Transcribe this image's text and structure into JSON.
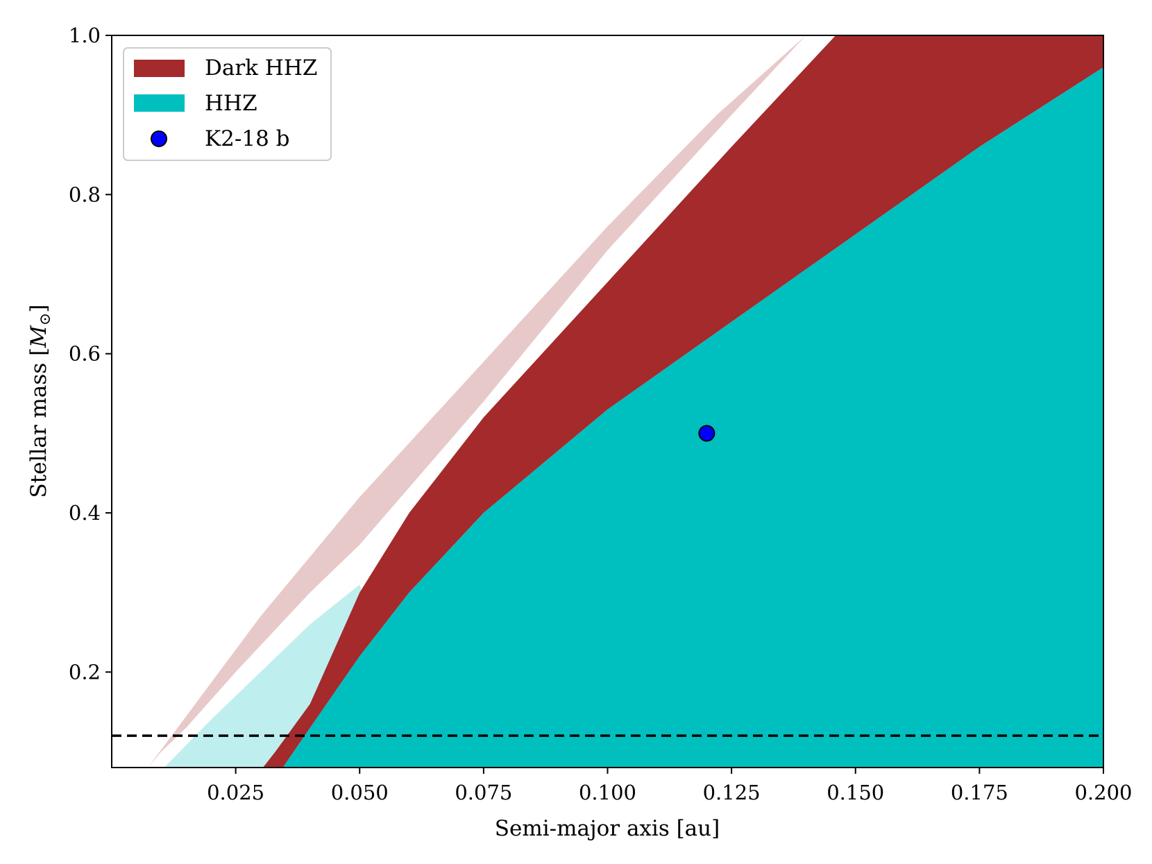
{
  "chart_data": {
    "type": "area",
    "title": "",
    "xlabel": "Semi-major axis [au]",
    "ylabel_text": "Stellar mass [",
    "ylabel_symbol": "M",
    "ylabel_subscript": "⊙",
    "ylabel_close": "]",
    "xlim": [
      0.0,
      0.2
    ],
    "ylim": [
      0.08,
      1.0
    ],
    "x_ticks": [
      0.025,
      0.05,
      0.075,
      0.1,
      0.125,
      0.15,
      0.175,
      0.2
    ],
    "x_tick_labels": [
      "0.025",
      "0.050",
      "0.075",
      "0.100",
      "0.125",
      "0.150",
      "0.175",
      "0.200"
    ],
    "y_ticks": [
      0.2,
      0.4,
      0.6,
      0.8,
      1.0
    ],
    "y_tick_labels": [
      "0.2",
      "0.4",
      "0.6",
      "0.8",
      "1.0"
    ],
    "grid": false,
    "legend_position": "top-left",
    "hline": {
      "y": 0.12,
      "style": "dashed",
      "color": "#000000"
    },
    "colors": {
      "dark_hhz": "#a42a2c",
      "dark_hhz_light": "#e8c9ca",
      "hhz": "#00bfbf",
      "hhz_light": "#bfeeee",
      "planet": "#0000ff"
    },
    "bands": {
      "light_dark_hhz": {
        "lower": [
          [
            0.0073,
            0.08
          ],
          [
            0.01,
            0.1
          ],
          [
            0.015,
            0.13
          ],
          [
            0.025,
            0.2
          ],
          [
            0.04,
            0.3
          ],
          [
            0.05,
            0.36
          ],
          [
            0.075,
            0.54
          ],
          [
            0.1,
            0.73
          ],
          [
            0.125,
            0.9
          ],
          [
            0.14,
            1.0
          ]
        ],
        "upper": [
          [
            0.0073,
            0.08
          ],
          [
            0.03,
            0.27
          ],
          [
            0.05,
            0.42
          ],
          [
            0.075,
            0.59
          ],
          [
            0.1,
            0.76
          ],
          [
            0.122,
            0.9
          ],
          [
            0.14,
            1.0
          ]
        ]
      },
      "light_hhz": {
        "lower": [
          [
            0.0106,
            0.08
          ],
          [
            0.02,
            0.14
          ],
          [
            0.03,
            0.2
          ],
          [
            0.04,
            0.26
          ],
          [
            0.05,
            0.31
          ]
        ],
        "upper": [
          [
            0.05,
            0.31
          ],
          [
            0.055,
            0.31
          ],
          [
            0.06,
            0.31
          ]
        ]
      },
      "dark_hhz": {
        "lower": [
          [
            0.0305,
            0.08
          ],
          [
            0.033,
            0.1
          ],
          [
            0.04,
            0.16
          ],
          [
            0.05,
            0.3
          ],
          [
            0.06,
            0.4
          ],
          [
            0.075,
            0.52
          ],
          [
            0.1,
            0.69
          ],
          [
            0.125,
            0.86
          ],
          [
            0.146,
            1.0
          ]
        ],
        "upper": [
          [
            0.0345,
            0.08
          ],
          [
            0.04,
            0.13
          ],
          [
            0.05,
            0.22
          ],
          [
            0.06,
            0.3
          ],
          [
            0.075,
            0.4
          ],
          [
            0.1,
            0.53
          ],
          [
            0.125,
            0.64
          ],
          [
            0.15,
            0.75
          ],
          [
            0.175,
            0.86
          ],
          [
            0.2,
            0.96
          ]
        ]
      },
      "hhz": {
        "left": [
          [
            0.0345,
            0.08
          ],
          [
            0.04,
            0.13
          ],
          [
            0.05,
            0.22
          ],
          [
            0.06,
            0.3
          ],
          [
            0.075,
            0.4
          ],
          [
            0.1,
            0.53
          ],
          [
            0.125,
            0.64
          ],
          [
            0.15,
            0.75
          ],
          [
            0.175,
            0.86
          ],
          [
            0.2,
            0.96
          ]
        ]
      }
    },
    "series": [
      {
        "name": "Dark HHZ",
        "kind": "band",
        "color": "#a42a2c"
      },
      {
        "name": "HHZ",
        "kind": "band",
        "color": "#00bfbf"
      },
      {
        "name": "K2-18 b",
        "kind": "point",
        "x": 0.12,
        "y": 0.5,
        "color": "#0000ff"
      }
    ]
  }
}
